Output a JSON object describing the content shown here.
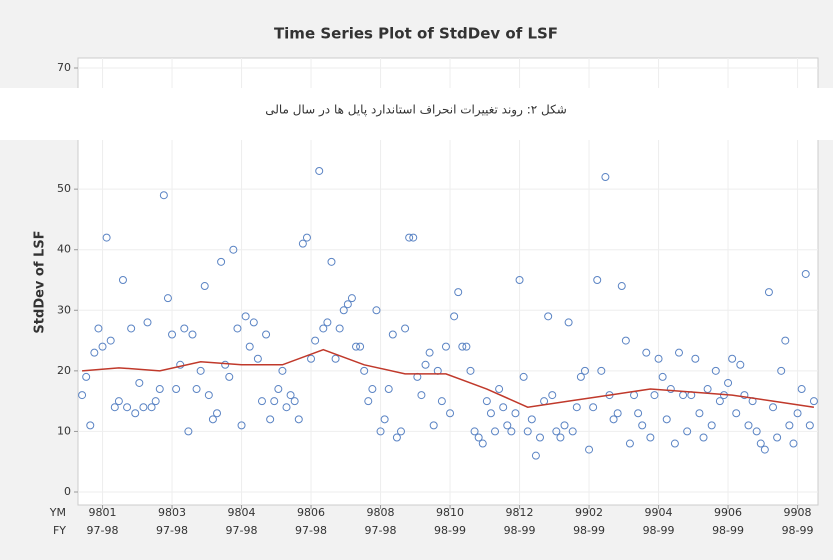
{
  "chart_data": {
    "type": "scatter",
    "title": "Time Series Plot of StdDev of LSF",
    "ylabel": "StdDev of LSF",
    "x_row_labels": [
      "YM",
      "FY"
    ],
    "color": "#5b84c4",
    "x": [
      1,
      2,
      3,
      4,
      5,
      6,
      7,
      8,
      9,
      10,
      11,
      12,
      13,
      14,
      15,
      16,
      17,
      18,
      19,
      20,
      21,
      22,
      23,
      24,
      25,
      26,
      27,
      28,
      29,
      30,
      31,
      32,
      33,
      34,
      35,
      36,
      37,
      38,
      39,
      40,
      41,
      42,
      43,
      44,
      45,
      46,
      47,
      48,
      49,
      50,
      51,
      52,
      53,
      54,
      55,
      56,
      57,
      58,
      59,
      60,
      61,
      62,
      63,
      64,
      65,
      66,
      67,
      68,
      69,
      70,
      71,
      72,
      73,
      74,
      75,
      76,
      77,
      78,
      79,
      80,
      81,
      82,
      83,
      84,
      85,
      86,
      87,
      88,
      89,
      90,
      91,
      92,
      93,
      94,
      95,
      96,
      97,
      98,
      99,
      100,
      101,
      102,
      103,
      104,
      105,
      106,
      107,
      108,
      109,
      110,
      111,
      112,
      113,
      114,
      115,
      116,
      117,
      118,
      119,
      120,
      121,
      122,
      123,
      124,
      125,
      126,
      127,
      128,
      129,
      130,
      131,
      132,
      133,
      134,
      135,
      136,
      137,
      138,
      139,
      140,
      141,
      142,
      143,
      144,
      145,
      146,
      147,
      148,
      149,
      150,
      151,
      152,
      153,
      154,
      155,
      156,
      157,
      158,
      159,
      160,
      161,
      162,
      163,
      164,
      165,
      166,
      167,
      168,
      169,
      170,
      171,
      172,
      173,
      174,
      175,
      176,
      177,
      178,
      179,
      180
    ],
    "values": [
      16,
      19,
      11,
      23,
      27,
      24,
      42,
      25,
      14,
      15,
      35,
      14,
      27,
      13,
      18,
      14,
      28,
      14,
      15,
      17,
      49,
      32,
      26,
      17,
      21,
      27,
      10,
      26,
      17,
      20,
      34,
      16,
      12,
      13,
      38,
      21,
      19,
      40,
      27,
      11,
      29,
      24,
      28,
      22,
      15,
      26,
      12,
      15,
      17,
      20,
      14,
      16,
      15,
      12,
      41,
      42,
      22,
      25,
      53,
      27,
      28,
      38,
      22,
      27,
      30,
      31,
      32,
      24,
      24,
      20,
      15,
      17,
      30,
      10,
      12,
      17,
      26,
      9,
      10,
      27,
      42,
      42,
      19,
      16,
      21,
      23,
      11,
      20,
      15,
      24,
      13,
      29,
      33,
      24,
      24,
      20,
      10,
      9,
      8,
      15,
      13,
      10,
      17,
      14,
      11,
      10,
      13,
      35,
      19,
      10,
      12,
      6,
      9,
      15,
      29,
      16,
      10,
      9,
      11,
      28,
      10,
      14,
      19,
      20,
      7,
      14,
      35,
      20,
      52,
      16,
      12,
      13,
      34,
      25,
      8,
      16,
      13,
      11,
      23,
      9,
      16,
      22,
      19,
      12,
      17,
      8,
      23,
      16,
      10,
      16,
      22,
      13,
      9,
      17,
      11,
      20,
      15,
      16,
      18,
      22,
      13,
      21,
      16,
      11,
      15,
      10,
      8,
      7,
      33,
      14,
      9,
      20,
      25,
      11,
      8,
      13,
      17,
      36,
      11,
      15
    ],
    "trend": {
      "color": "#c0392b",
      "x": [
        1,
        10,
        20,
        30,
        40,
        50,
        60,
        70,
        80,
        90,
        100,
        110,
        120,
        130,
        140,
        150,
        160,
        170,
        180
      ],
      "values": [
        20,
        20.5,
        20,
        21.5,
        21,
        21,
        23.5,
        21,
        19.5,
        19.5,
        17,
        14,
        15,
        16,
        17,
        16.5,
        16,
        15,
        14
      ]
    },
    "xlim": [
      0,
      181
    ],
    "xticks": [
      {
        "value": 6,
        "label": "9801"
      },
      {
        "value": 23,
        "label": "9803"
      },
      {
        "value": 40,
        "label": "9804"
      },
      {
        "value": 57,
        "label": "9806"
      },
      {
        "value": 74,
        "label": "9808"
      },
      {
        "value": 91,
        "label": "9810"
      },
      {
        "value": 108,
        "label": "9812"
      },
      {
        "value": 125,
        "label": "9902"
      },
      {
        "value": 142,
        "label": "9904"
      },
      {
        "value": 159,
        "label": "9906"
      },
      {
        "value": 176,
        "label": "9908"
      }
    ],
    "xtick_sublabels": [
      "97-98",
      "97-98",
      "97-98",
      "97-98",
      "97-98",
      "98-99",
      "98-99",
      "98-99",
      "98-99",
      "98-99",
      "98-99"
    ],
    "ylim": [
      0,
      70
    ],
    "yticks": [
      0,
      10,
      20,
      30,
      40,
      50,
      70
    ],
    "grid": true
  },
  "caption": "شکل ۲: روند تغییرات انحراف استاندارد پایل ها در سال مالی"
}
